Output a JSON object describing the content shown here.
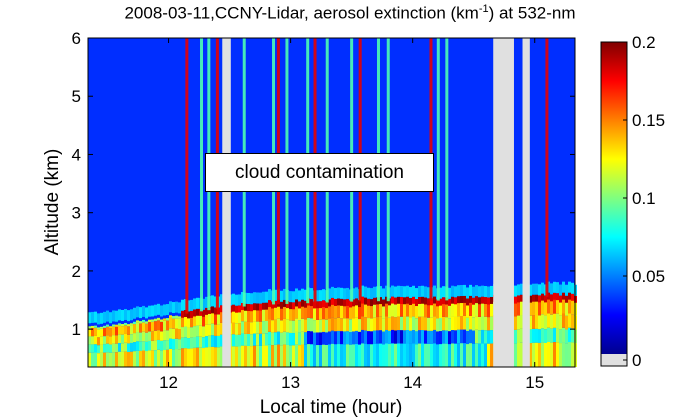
{
  "chart_data": {
    "type": "heatmap",
    "title_main": "2008-03-11,CCNY-Lidar, aerosol extinction (km",
    "title_unit_exp": "-1",
    "title_tail": ") at 532-nm",
    "xlabel": "Local time (hour)",
    "ylabel": "Altitude (km)",
    "x_ticks": [
      "12",
      "13",
      "14",
      "15"
    ],
    "y_ticks": [
      "1",
      "2",
      "3",
      "4",
      "5",
      "6"
    ],
    "xlim": [
      11.34,
      15.33
    ],
    "ylim": [
      0.35,
      6
    ],
    "colorbar": {
      "ticks": [
        "0",
        "0.05",
        "0.1",
        "0.15",
        "0.2"
      ],
      "range": [
        0,
        0.2
      ],
      "colormap": "jet",
      "nodata_color": "#e0e0e0"
    },
    "annotation": "cloud contamination",
    "boundary_layer_top": [
      {
        "t": 11.4,
        "h": 1.05
      },
      {
        "t": 11.8,
        "h": 1.15
      },
      {
        "t": 12.1,
        "h": 1.25
      },
      {
        "t": 12.4,
        "h": 1.35
      },
      {
        "t": 12.8,
        "h": 1.42
      },
      {
        "t": 13.2,
        "h": 1.45
      },
      {
        "t": 13.6,
        "h": 1.48
      },
      {
        "t": 14.0,
        "h": 1.48
      },
      {
        "t": 14.4,
        "h": 1.5
      },
      {
        "t": 15.0,
        "h": 1.55
      },
      {
        "t": 15.3,
        "h": 1.55
      }
    ],
    "missing_data_intervals": [
      [
        12.44,
        12.51
      ],
      [
        14.66,
        14.83
      ],
      [
        14.9,
        14.96
      ]
    ],
    "cloud_streaks": [
      12.15,
      12.27,
      12.33,
      12.4,
      12.62,
      12.86,
      12.9,
      12.97,
      13.14,
      13.2,
      13.3,
      13.5,
      13.57,
      13.72,
      13.8,
      14.15,
      14.21,
      14.28,
      15.1
    ]
  }
}
